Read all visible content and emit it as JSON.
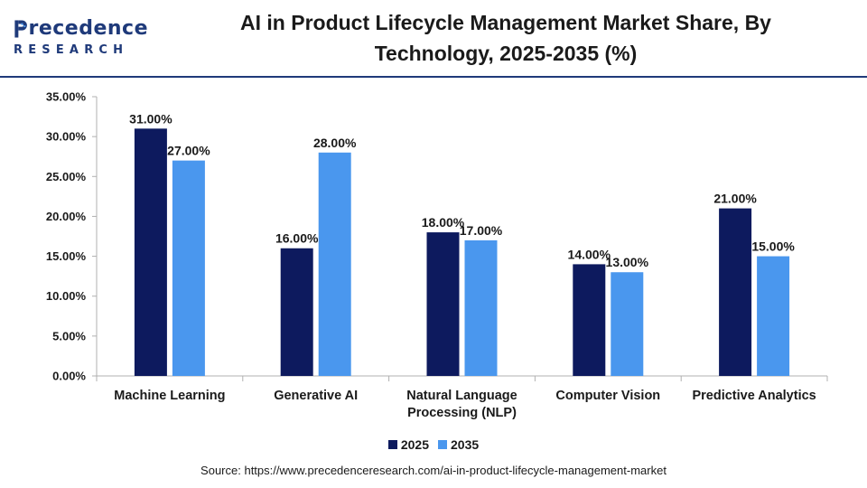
{
  "header": {
    "logo": {
      "word": "recedence",
      "sub": "RESEARCH",
      "color": "#1f3a7a"
    },
    "title_line1": "AI in Product Lifecycle Management Market Share, By",
    "title_line2": "Technology, 2025-2035 (%)"
  },
  "chart_data": {
    "type": "bar",
    "categories": [
      "Machine Learning",
      "Generative AI",
      "Natural Language Processing (NLP)",
      "Computer Vision",
      "Predictive Analytics"
    ],
    "category_lines": [
      [
        "Machine Learning"
      ],
      [
        "Generative AI"
      ],
      [
        "Natural Language",
        "Processing (NLP)"
      ],
      [
        "Computer Vision"
      ],
      [
        "Predictive Analytics"
      ]
    ],
    "series": [
      {
        "name": "2025",
        "values": [
          31,
          16,
          18,
          14,
          21
        ],
        "labels": [
          "31.00%",
          "16.00%",
          "18.00%",
          "14.00%",
          "21.00%"
        ],
        "color": "#0d1a5e"
      },
      {
        "name": "2035",
        "values": [
          27,
          28,
          17,
          13,
          15
        ],
        "labels": [
          "27.00%",
          "28.00%",
          "17.00%",
          "13.00%",
          "15.00%"
        ],
        "color": "#4a97ee"
      }
    ],
    "ylim": [
      0,
      35
    ],
    "yticks": [
      0,
      5,
      10,
      15,
      20,
      25,
      30,
      35
    ],
    "ytick_labels": [
      "0.00%",
      "5.00%",
      "10.00%",
      "15.00%",
      "20.00%",
      "25.00%",
      "30.00%",
      "35.00%"
    ],
    "grid": false,
    "legend": "bottom-center"
  },
  "source": "Source: https://www.precedenceresearch.com/ai-in-product-lifecycle-management-market"
}
